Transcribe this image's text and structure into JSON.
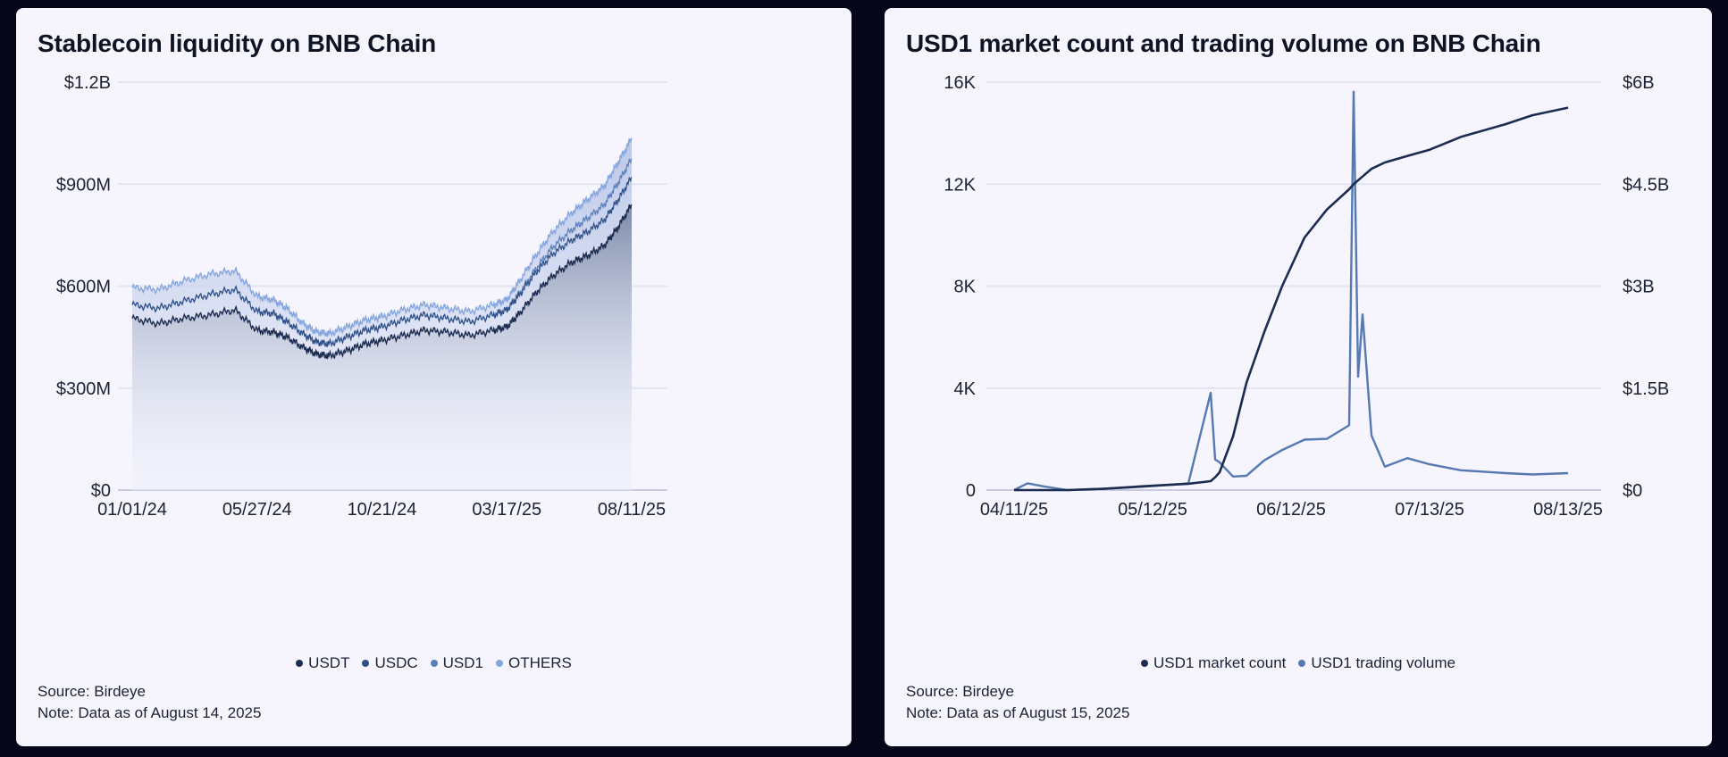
{
  "colors": {
    "USDT": "#1c2c50",
    "USDC": "#2f4f86",
    "USD1": "#5b7fb8",
    "OTHERS": "#86a6de",
    "market_count": "#1c2c50",
    "trading_volume": "#5579b0"
  },
  "chart_data": [
    {
      "type": "area",
      "stacked": true,
      "title": "Stablecoin liquidity on BNB Chain",
      "x_ticks": [
        "01/01/24",
        "05/27/24",
        "10/21/24",
        "03/17/25",
        "08/11/25"
      ],
      "y_ticks": [
        "$0",
        "$300M",
        "$600M",
        "$900M",
        "$1.2B"
      ],
      "ylim": [
        0,
        1200000000
      ],
      "x": [
        "01/01/24",
        "02/01/24",
        "03/01/24",
        "04/01/24",
        "05/01/24",
        "05/27/24",
        "06/15/24",
        "07/01/24",
        "07/20/24",
        "08/05/24",
        "08/20/24",
        "09/10/24",
        "10/01/24",
        "10/21/24",
        "11/15/24",
        "12/10/24",
        "01/05/25",
        "02/01/25",
        "03/01/25",
        "03/17/25",
        "04/01/25",
        "04/20/25",
        "05/10/25",
        "06/01/25",
        "06/20/25",
        "07/10/25",
        "07/25/25",
        "08/11/25"
      ],
      "series": [
        {
          "name": "USDT",
          "values": [
            505,
            490,
            505,
            515,
            530,
            470,
            465,
            450,
            420,
            400,
            395,
            410,
            430,
            440,
            455,
            470,
            465,
            455,
            470,
            480,
            520,
            580,
            630,
            670,
            690,
            720,
            770,
            840
          ]
        },
        {
          "name": "USDC",
          "values": [
            40,
            45,
            50,
            60,
            60,
            55,
            55,
            45,
            40,
            35,
            35,
            40,
            40,
            40,
            45,
            45,
            40,
            40,
            45,
            50,
            55,
            60,
            65,
            65,
            70,
            75,
            80,
            80
          ]
        },
        {
          "name": "USD1",
          "values": [
            0,
            0,
            0,
            0,
            0,
            0,
            0,
            0,
            0,
            0,
            0,
            0,
            0,
            0,
            0,
            0,
            0,
            0,
            0,
            0,
            5,
            10,
            20,
            30,
            40,
            45,
            50,
            55
          ]
        },
        {
          "name": "OTHERS",
          "values": [
            50,
            55,
            60,
            60,
            55,
            45,
            40,
            40,
            30,
            30,
            30,
            30,
            30,
            30,
            30,
            30,
            30,
            30,
            30,
            30,
            35,
            40,
            45,
            50,
            55,
            55,
            60,
            60
          ]
        }
      ],
      "value_unit": "$M",
      "legend": [
        "USDT",
        "USDC",
        "USD1",
        "OTHERS"
      ],
      "legend_position": "bottom",
      "grid": true
    },
    {
      "type": "line",
      "title": "USD1 market count and trading volume on BNB Chain",
      "x_ticks": [
        "04/11/25",
        "05/12/25",
        "06/12/25",
        "07/13/25",
        "08/13/25"
      ],
      "y_ticks_left": [
        "0",
        "4K",
        "8K",
        "12K",
        "16K"
      ],
      "y_ticks_right": [
        "$0",
        "$1.5B",
        "$3B",
        "$4.5B",
        "$6B"
      ],
      "ylim_left": [
        0,
        16000
      ],
      "ylim_right": [
        0,
        6000000000
      ],
      "day_labels": [
        "04/11/25",
        "04/14/25",
        "04/18/25",
        "04/23/25",
        "05/01/25",
        "05/10/25",
        "05/20/25",
        "05/25/25",
        "05/26/25",
        "05/27/25",
        "05/30/25",
        "06/02/25",
        "06/06/25",
        "06/10/25",
        "06/15/25",
        "06/20/25",
        "06/25/25",
        "06/26/25",
        "06/27/25",
        "06/28/25",
        "06/30/25",
        "07/03/25",
        "07/08/25",
        "07/13/25",
        "07/20/25",
        "07/30/25",
        "08/05/25",
        "08/13/25"
      ],
      "series": [
        {
          "name": "USD1 market count",
          "axis": "left",
          "values": [
            0,
            0,
            0,
            0,
            50,
            150,
            250,
            350,
            500,
            700,
            2100,
            4200,
            6200,
            8000,
            9900,
            11000,
            11800,
            12000,
            12150,
            12300,
            12600,
            12850,
            13100,
            13350,
            13850,
            14350,
            14700,
            15000
          ]
        },
        {
          "name": "USD1 trading volume",
          "axis": "right",
          "values": [
            0,
            100,
            50,
            0,
            20,
            50,
            100,
            1430,
            450,
            350,
            250,
            200,
            400,
            650,
            700,
            750,
            1000,
            5800,
            1700,
            2600,
            750,
            400,
            450,
            350,
            350,
            250,
            230,
            250
          ]
        }
      ],
      "legend": [
        "USD1 market count",
        "USD1 trading volume"
      ],
      "legend_position": "bottom",
      "grid": true
    }
  ],
  "left_panel": {
    "source": "Source: Birdeye",
    "note": "Note: Data as of August 14, 2025"
  },
  "right_panel": {
    "source": "Source: Birdeye",
    "note": "Note: Data as of August 15, 2025"
  }
}
